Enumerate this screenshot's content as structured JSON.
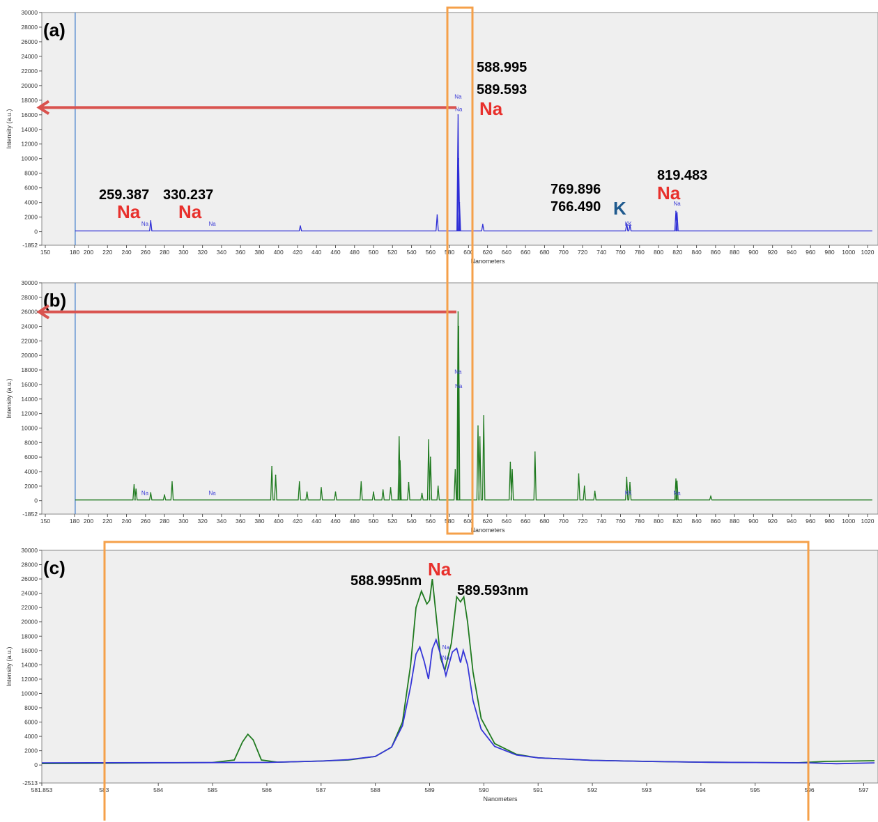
{
  "chart_data": [
    {
      "panel_label": "(a)",
      "type": "line",
      "xlabel": "Nanometers",
      "ylabel": "Intensity (a.u.)",
      "xlim": [
        150,
        1025
      ],
      "ylim": [
        -1852,
        30000
      ],
      "x_tick_labels": [
        "150",
        "180",
        "200",
        "220",
        "240",
        "260",
        "280",
        "300",
        "320",
        "340",
        "360",
        "380",
        "400",
        "420",
        "440",
        "460",
        "480",
        "500",
        "520",
        "540",
        "560",
        "580",
        "600",
        "620",
        "640",
        "660",
        "680",
        "700",
        "720",
        "740",
        "760",
        "780",
        "800",
        "820",
        "840",
        "860",
        "880",
        "900",
        "920",
        "940",
        "960",
        "980",
        "1000",
        "1020"
      ],
      "y_tick_labels": [
        "30000",
        "28000",
        "26000",
        "24000",
        "22000",
        "20000",
        "18000",
        "16000",
        "14000",
        "12000",
        "10000",
        "8000",
        "6000",
        "4000",
        "2000",
        "0",
        "-1852"
      ],
      "series": [
        {
          "color": "#2e2ed6",
          "peaks": [
            {
              "x": 265.5,
              "y": 1500
            },
            {
              "x": 423,
              "y": 800
            },
            {
              "x": 567,
              "y": 2300
            },
            {
              "x": 588.995,
              "y": 16000
            },
            {
              "x": 589.593,
              "y": 10000
            },
            {
              "x": 590.5,
              "y": 4000
            },
            {
              "x": 615,
              "y": 1000
            },
            {
              "x": 766.49,
              "y": 1100
            },
            {
              "x": 769.896,
              "y": 900
            },
            {
              "x": 818.3,
              "y": 2800
            },
            {
              "x": 819.483,
              "y": 2600
            }
          ],
          "line_markers": [
            {
              "x": 259.387,
              "label": "Na"
            },
            {
              "x": 330.237,
              "label": "Na"
            },
            {
              "x": 588.995,
              "label": "Na"
            },
            {
              "x": 589.593,
              "label": "Na"
            },
            {
              "x": 766.49,
              "label": "K"
            },
            {
              "x": 769.896,
              "label": "K"
            },
            {
              "x": 819.483,
              "label": "Na"
            }
          ]
        }
      ],
      "annotations": [
        {
          "text": "588.995"
        },
        {
          "text": "589.593"
        },
        {
          "text": "Na",
          "kind": "na"
        },
        {
          "text": "259.387"
        },
        {
          "text": "Na",
          "kind": "na"
        },
        {
          "text": "330.237"
        },
        {
          "text": "Na",
          "kind": "na"
        },
        {
          "text": "769.896"
        },
        {
          "text": "766.490"
        },
        {
          "text": "K",
          "kind": "k"
        },
        {
          "text": "819.483"
        },
        {
          "text": "Na",
          "kind": "na"
        }
      ],
      "arrow_level": 17000,
      "cursor_x": 186
    },
    {
      "panel_label": "(b)",
      "type": "line",
      "xlabel": "Nanometers",
      "ylabel": "Intensity (a.u.)",
      "xlim": [
        150,
        1025
      ],
      "ylim": [
        -1852,
        30000
      ],
      "x_tick_labels": [
        "150",
        "180",
        "200",
        "220",
        "240",
        "260",
        "280",
        "300",
        "320",
        "340",
        "360",
        "380",
        "400",
        "420",
        "440",
        "460",
        "480",
        "500",
        "520",
        "540",
        "560",
        "580",
        "600",
        "620",
        "640",
        "660",
        "680",
        "700",
        "720",
        "740",
        "760",
        "780",
        "800",
        "820",
        "840",
        "860",
        "880",
        "900",
        "920",
        "940",
        "960",
        "980",
        "1000",
        "1020"
      ],
      "y_tick_labels": [
        "30000",
        "28000",
        "26000",
        "24000",
        "22000",
        "20000",
        "18000",
        "16000",
        "14000",
        "12000",
        "10000",
        "8000",
        "6000",
        "4000",
        "2000",
        "0",
        "-1852"
      ],
      "series": [
        {
          "color": "#1f7a1f",
          "peaks": [
            {
              "x": 248,
              "y": 2200
            },
            {
              "x": 250,
              "y": 1600
            },
            {
              "x": 265.5,
              "y": 1100
            },
            {
              "x": 280,
              "y": 800
            },
            {
              "x": 288,
              "y": 2600
            },
            {
              "x": 393,
              "y": 4700
            },
            {
              "x": 397,
              "y": 3500
            },
            {
              "x": 422,
              "y": 2600
            },
            {
              "x": 430,
              "y": 1200
            },
            {
              "x": 445,
              "y": 1800
            },
            {
              "x": 460,
              "y": 1200
            },
            {
              "x": 487,
              "y": 2600
            },
            {
              "x": 500,
              "y": 1200
            },
            {
              "x": 510,
              "y": 1500
            },
            {
              "x": 518,
              "y": 1800
            },
            {
              "x": 527,
              "y": 8800
            },
            {
              "x": 528,
              "y": 5500
            },
            {
              "x": 537,
              "y": 2500
            },
            {
              "x": 551,
              "y": 1000
            },
            {
              "x": 558,
              "y": 8400
            },
            {
              "x": 560,
              "y": 6000
            },
            {
              "x": 568,
              "y": 2000
            },
            {
              "x": 586,
              "y": 4300
            },
            {
              "x": 588.995,
              "y": 26000
            },
            {
              "x": 589.593,
              "y": 24000
            },
            {
              "x": 610,
              "y": 10300
            },
            {
              "x": 612,
              "y": 8800
            },
            {
              "x": 616,
              "y": 11700
            },
            {
              "x": 644,
              "y": 5300
            },
            {
              "x": 646,
              "y": 4300
            },
            {
              "x": 670,
              "y": 6700
            },
            {
              "x": 716,
              "y": 3700
            },
            {
              "x": 722,
              "y": 2000
            },
            {
              "x": 733,
              "y": 1300
            },
            {
              "x": 766.49,
              "y": 3200
            },
            {
              "x": 769.896,
              "y": 2500
            },
            {
              "x": 818.3,
              "y": 3000
            },
            {
              "x": 819.483,
              "y": 2700
            },
            {
              "x": 855,
              "y": 600
            }
          ],
          "line_markers": [
            {
              "x": 259.387,
              "label": "Na"
            },
            {
              "x": 330.237,
              "label": "Na"
            },
            {
              "x": 588.995,
              "label": "Na"
            },
            {
              "x": 589.593,
              "label": "Na"
            },
            {
              "x": 766.49,
              "label": "K"
            },
            {
              "x": 769.896,
              "label": "K"
            },
            {
              "x": 819.483,
              "label": "Na"
            }
          ]
        }
      ],
      "arrow_level": 26000,
      "cursor_x": 186
    },
    {
      "panel_label": "(c)",
      "type": "line",
      "xlabel": "Nanometers",
      "ylabel": "Intensity (a.u.)",
      "xlim": [
        581.853,
        597.2
      ],
      "ylim": [
        -2513,
        30000
      ],
      "x_tick_labels": [
        "581.853",
        "583",
        "584",
        "585",
        "586",
        "587",
        "588",
        "589",
        "590",
        "591",
        "592",
        "593",
        "594",
        "595",
        "596",
        "597"
      ],
      "y_tick_labels": [
        "30000",
        "28000",
        "26000",
        "24000",
        "22000",
        "20000",
        "18000",
        "16000",
        "14000",
        "12000",
        "10000",
        "8000",
        "6000",
        "4000",
        "2000",
        "0",
        "-2513"
      ],
      "series": [
        {
          "color": "#1f7a1f",
          "points": [
            [
              581.853,
              200
            ],
            [
              583,
              250
            ],
            [
              584,
              300
            ],
            [
              585,
              350
            ],
            [
              585.4,
              700
            ],
            [
              585.55,
              3200
            ],
            [
              585.65,
              4300
            ],
            [
              585.75,
              3500
            ],
            [
              585.9,
              700
            ],
            [
              586.2,
              400
            ],
            [
              587,
              550
            ],
            [
              587.5,
              700
            ],
            [
              588,
              1200
            ],
            [
              588.3,
              2500
            ],
            [
              588.5,
              6000
            ],
            [
              588.65,
              14000
            ],
            [
              588.75,
              22000
            ],
            [
              588.85,
              24300
            ],
            [
              588.95,
              22500
            ],
            [
              589.0,
              23000
            ],
            [
              589.05,
              26000
            ],
            [
              589.12,
              21000
            ],
            [
              589.2,
              15000
            ],
            [
              589.28,
              13200
            ],
            [
              589.4,
              17000
            ],
            [
              589.5,
              23500
            ],
            [
              589.57,
              22800
            ],
            [
              589.63,
              23500
            ],
            [
              589.7,
              20000
            ],
            [
              589.8,
              13000
            ],
            [
              589.95,
              6500
            ],
            [
              590.2,
              3000
            ],
            [
              590.6,
              1500
            ],
            [
              591,
              1000
            ],
            [
              592,
              650
            ],
            [
              593,
              500
            ],
            [
              594,
              400
            ],
            [
              595,
              350
            ],
            [
              595.8,
              320
            ],
            [
              596.3,
              500
            ],
            [
              597.2,
              600
            ]
          ]
        },
        {
          "color": "#3535d8",
          "points": [
            [
              581.853,
              300
            ],
            [
              583,
              320
            ],
            [
              584,
              330
            ],
            [
              585,
              340
            ],
            [
              586,
              360
            ],
            [
              587,
              550
            ],
            [
              587.5,
              750
            ],
            [
              588,
              1200
            ],
            [
              588.3,
              2500
            ],
            [
              588.5,
              5500
            ],
            [
              588.65,
              11000
            ],
            [
              588.75,
              15500
            ],
            [
              588.82,
              16500
            ],
            [
              588.9,
              14500
            ],
            [
              588.98,
              12000
            ],
            [
              589.05,
              16200
            ],
            [
              589.12,
              17500
            ],
            [
              589.2,
              15500
            ],
            [
              589.3,
              12500
            ],
            [
              589.42,
              15800
            ],
            [
              589.5,
              16300
            ],
            [
              589.57,
              14300
            ],
            [
              589.62,
              16000
            ],
            [
              589.7,
              14000
            ],
            [
              589.8,
              9000
            ],
            [
              589.95,
              5000
            ],
            [
              590.2,
              2600
            ],
            [
              590.6,
              1400
            ],
            [
              591,
              1000
            ],
            [
              592,
              650
            ],
            [
              593,
              500
            ],
            [
              594,
              400
            ],
            [
              595,
              350
            ],
            [
              596,
              300
            ],
            [
              596.5,
              180
            ],
            [
              597.2,
              300
            ]
          ]
        }
      ],
      "line_markers": [
        {
          "x": 588.995,
          "label": "Na"
        },
        {
          "x": 589.593,
          "label": "Na"
        }
      ],
      "annotations": [
        {
          "text": "Na",
          "kind": "na"
        },
        {
          "text": "588.995nm"
        },
        {
          "text": "589.593nm"
        }
      ]
    }
  ],
  "highlights": {
    "box_color": "#f5a04a",
    "arrow_color": "#d9534f",
    "cursor_color": "#3a78c9"
  }
}
